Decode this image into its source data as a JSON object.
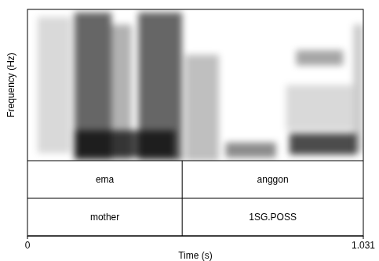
{
  "chart_data": {
    "type": "spectrogram",
    "x_label": "Time (s)",
    "y_label": "Frequency (Hz)",
    "xlim": [
      0,
      1.031
    ],
    "xticks": [
      0,
      1.031
    ],
    "tick_labels": "x",
    "boundaries": [
      0.475
    ],
    "tiers": [
      [
        "ema",
        "anggon"
      ],
      [
        "mother",
        "1SG.POSS"
      ]
    ]
  }
}
